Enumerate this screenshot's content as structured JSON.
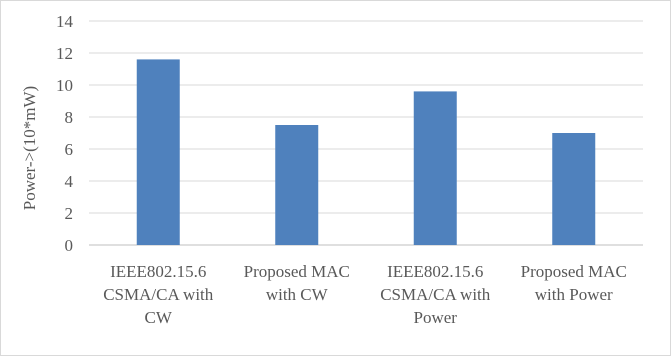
{
  "chart_data": {
    "type": "bar",
    "title": "",
    "xlabel": "",
    "ylabel": "Power->(10*mW)",
    "ylim": [
      0,
      14
    ],
    "yticks": [
      0,
      2,
      4,
      6,
      8,
      10,
      12,
      14
    ],
    "grid": true,
    "legend": "none",
    "bar_color": "#4f81bd",
    "categories": [
      [
        "IEEE802.15.6",
        "CSMA/CA with",
        "CW"
      ],
      [
        "Proposed MAC",
        "with CW"
      ],
      [
        "IEEE802.15.6",
        "CSMA/CA with",
        "Power"
      ],
      [
        "Proposed MAC",
        "with Power"
      ]
    ],
    "values": [
      11.6,
      7.5,
      9.6,
      7.0
    ]
  }
}
